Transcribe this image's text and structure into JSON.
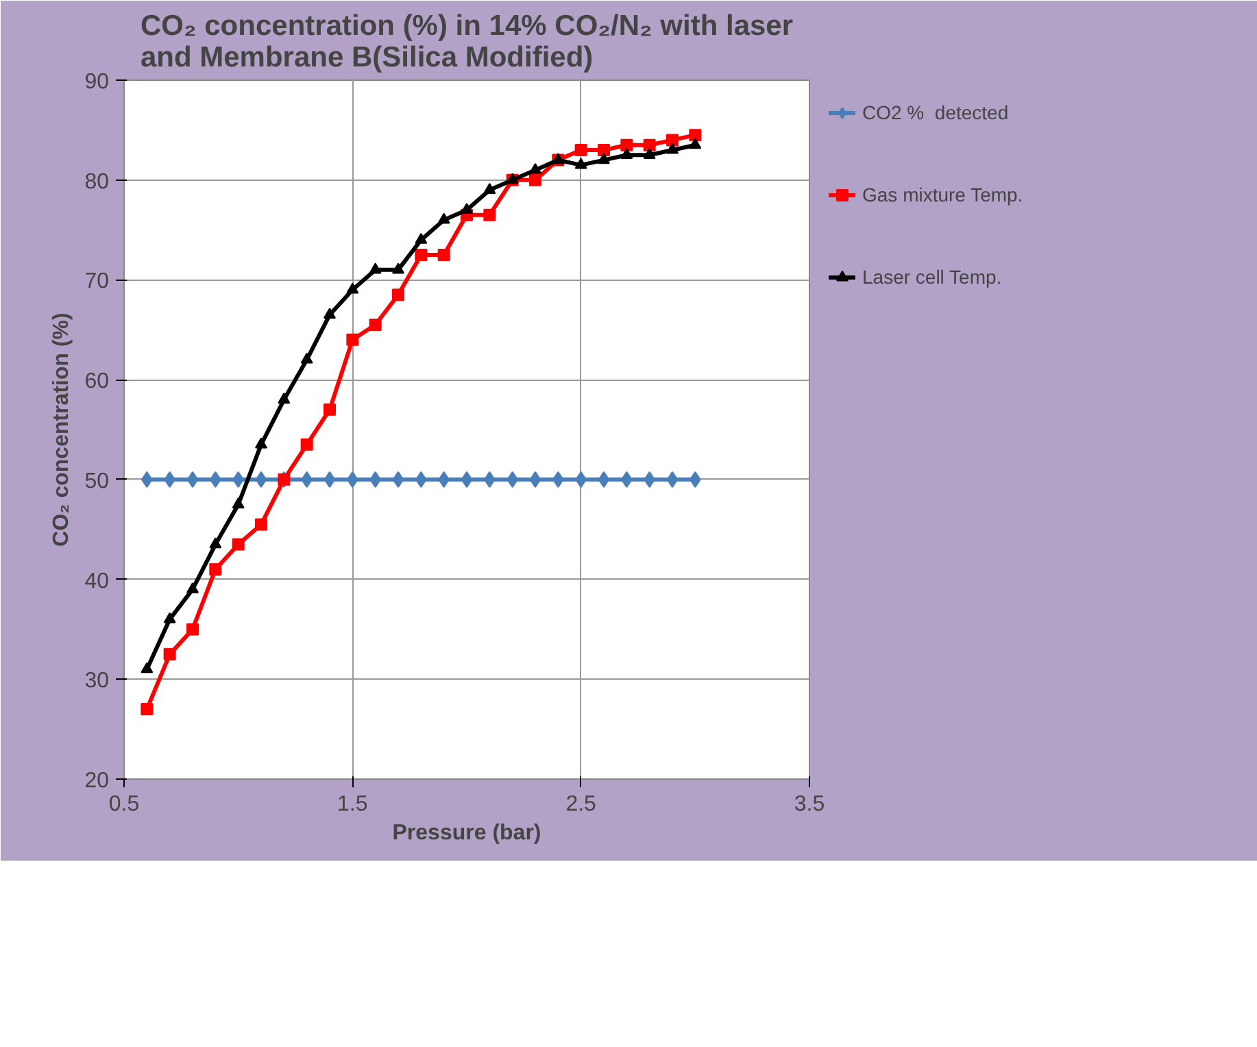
{
  "chart_data": {
    "type": "line",
    "title": "CO₂ concentration (%) in 14% CO₂/N₂ with laser\nand Membrane B(Silica Modified)",
    "xlabel": "Pressure (bar)",
    "ylabel": "CO₂ concentration (%)",
    "x": [
      0.6,
      0.7,
      0.8,
      0.9,
      1.0,
      1.1,
      1.2,
      1.3,
      1.4,
      1.5,
      1.6,
      1.7,
      1.8,
      1.9,
      2.0,
      2.1,
      2.2,
      2.3,
      2.4,
      2.5,
      2.6,
      2.7,
      2.8,
      2.9,
      3.0
    ],
    "series": [
      {
        "name": "CO2 %  detected",
        "color": "#4a7ebb",
        "marker": "diamond",
        "values": [
          50,
          50,
          50,
          50,
          50,
          50,
          50,
          50,
          50,
          50,
          50,
          50,
          50,
          50,
          50,
          50,
          50,
          50,
          50,
          50,
          50,
          50,
          50,
          50,
          50
        ]
      },
      {
        "name": "Gas mixture Temp.",
        "color": "#ff0000",
        "marker": "square",
        "values": [
          27,
          32.5,
          35,
          41,
          43.5,
          45.5,
          50,
          53.5,
          57,
          64,
          65.5,
          68.5,
          72.5,
          72.5,
          76.5,
          76.5,
          80,
          80,
          82,
          83,
          83,
          83.5,
          83.5,
          84,
          84.5
        ]
      },
      {
        "name": "Laser cell Temp.",
        "color": "#000000",
        "marker": "triangle",
        "values": [
          31,
          36,
          39,
          43.5,
          47.5,
          53.5,
          58,
          62,
          66.5,
          69,
          71,
          71,
          74,
          76,
          77,
          79,
          80,
          81,
          82,
          81.5,
          82,
          82.5,
          82.5,
          83,
          83.5
        ]
      }
    ],
    "xlim": [
      0.5,
      3.5
    ],
    "xticks": [
      0.5,
      1.5,
      2.5,
      3.5
    ],
    "ylim": [
      20,
      90
    ],
    "yticks": [
      20,
      30,
      40,
      50,
      60,
      70,
      80,
      90
    ],
    "grid": true,
    "legend": "right",
    "line_style": "solid"
  }
}
